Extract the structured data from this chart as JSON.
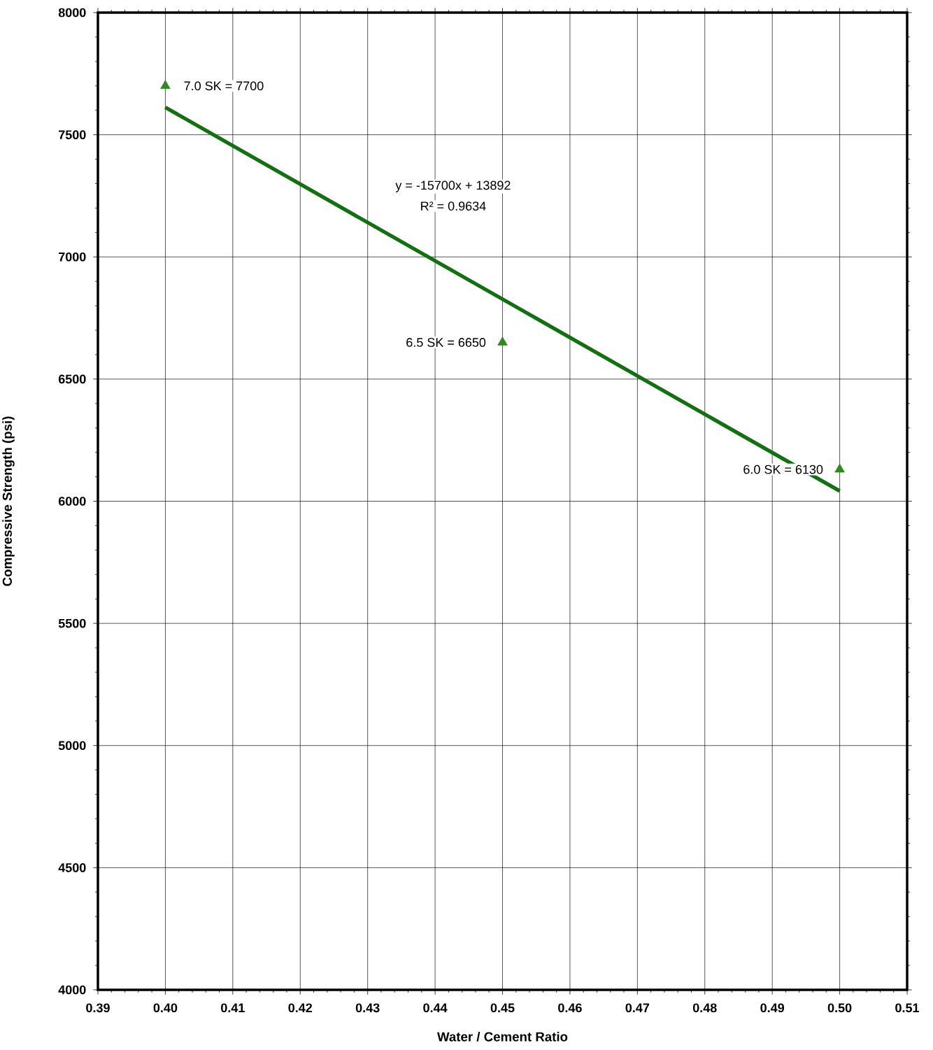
{
  "chart_data": {
    "type": "scatter",
    "xlabel": "Water / Cement Ratio",
    "ylabel": "Compressive Strength (psi)",
    "xlim": [
      0.39,
      0.51
    ],
    "ylim": [
      4000,
      8000
    ],
    "xticks": [
      {
        "value": 0.39,
        "label": "0.39"
      },
      {
        "value": 0.4,
        "label": "0.40"
      },
      {
        "value": 0.41,
        "label": "0.41"
      },
      {
        "value": 0.42,
        "label": "0.42"
      },
      {
        "value": 0.43,
        "label": "0.43"
      },
      {
        "value": 0.44,
        "label": "0.44"
      },
      {
        "value": 0.45,
        "label": "0.45"
      },
      {
        "value": 0.46,
        "label": "0.46"
      },
      {
        "value": 0.47,
        "label": "0.47"
      },
      {
        "value": 0.48,
        "label": "0.48"
      },
      {
        "value": 0.49,
        "label": "0.49"
      },
      {
        "value": 0.5,
        "label": "0.50"
      },
      {
        "value": 0.51,
        "label": "0.51"
      }
    ],
    "yticks": [
      4000,
      4500,
      5000,
      5500,
      6000,
      6500,
      7000,
      7500,
      8000
    ],
    "grid": true,
    "series": [
      {
        "type": "scatter",
        "color": "#2e8b1e",
        "marker": "triangle",
        "x": [
          0.4,
          0.45,
          0.5
        ],
        "values": [
          7700,
          6650,
          6130
        ]
      },
      {
        "type": "line",
        "color": "#127012",
        "marker": "none",
        "x": [
          0.4,
          0.5
        ],
        "values": [
          7612,
          6042
        ]
      }
    ],
    "annotations": [
      {
        "text": "7.0 SK = 7700",
        "x": 0.4,
        "y": 7700
      },
      {
        "text": "6.5 SK = 6650",
        "x": 0.45,
        "y": 6650
      },
      {
        "text": "6.0 SK = 6130",
        "x": 0.5,
        "y": 6130
      },
      "y = -15700x + 13892",
      "R² = 0.9634"
    ]
  }
}
